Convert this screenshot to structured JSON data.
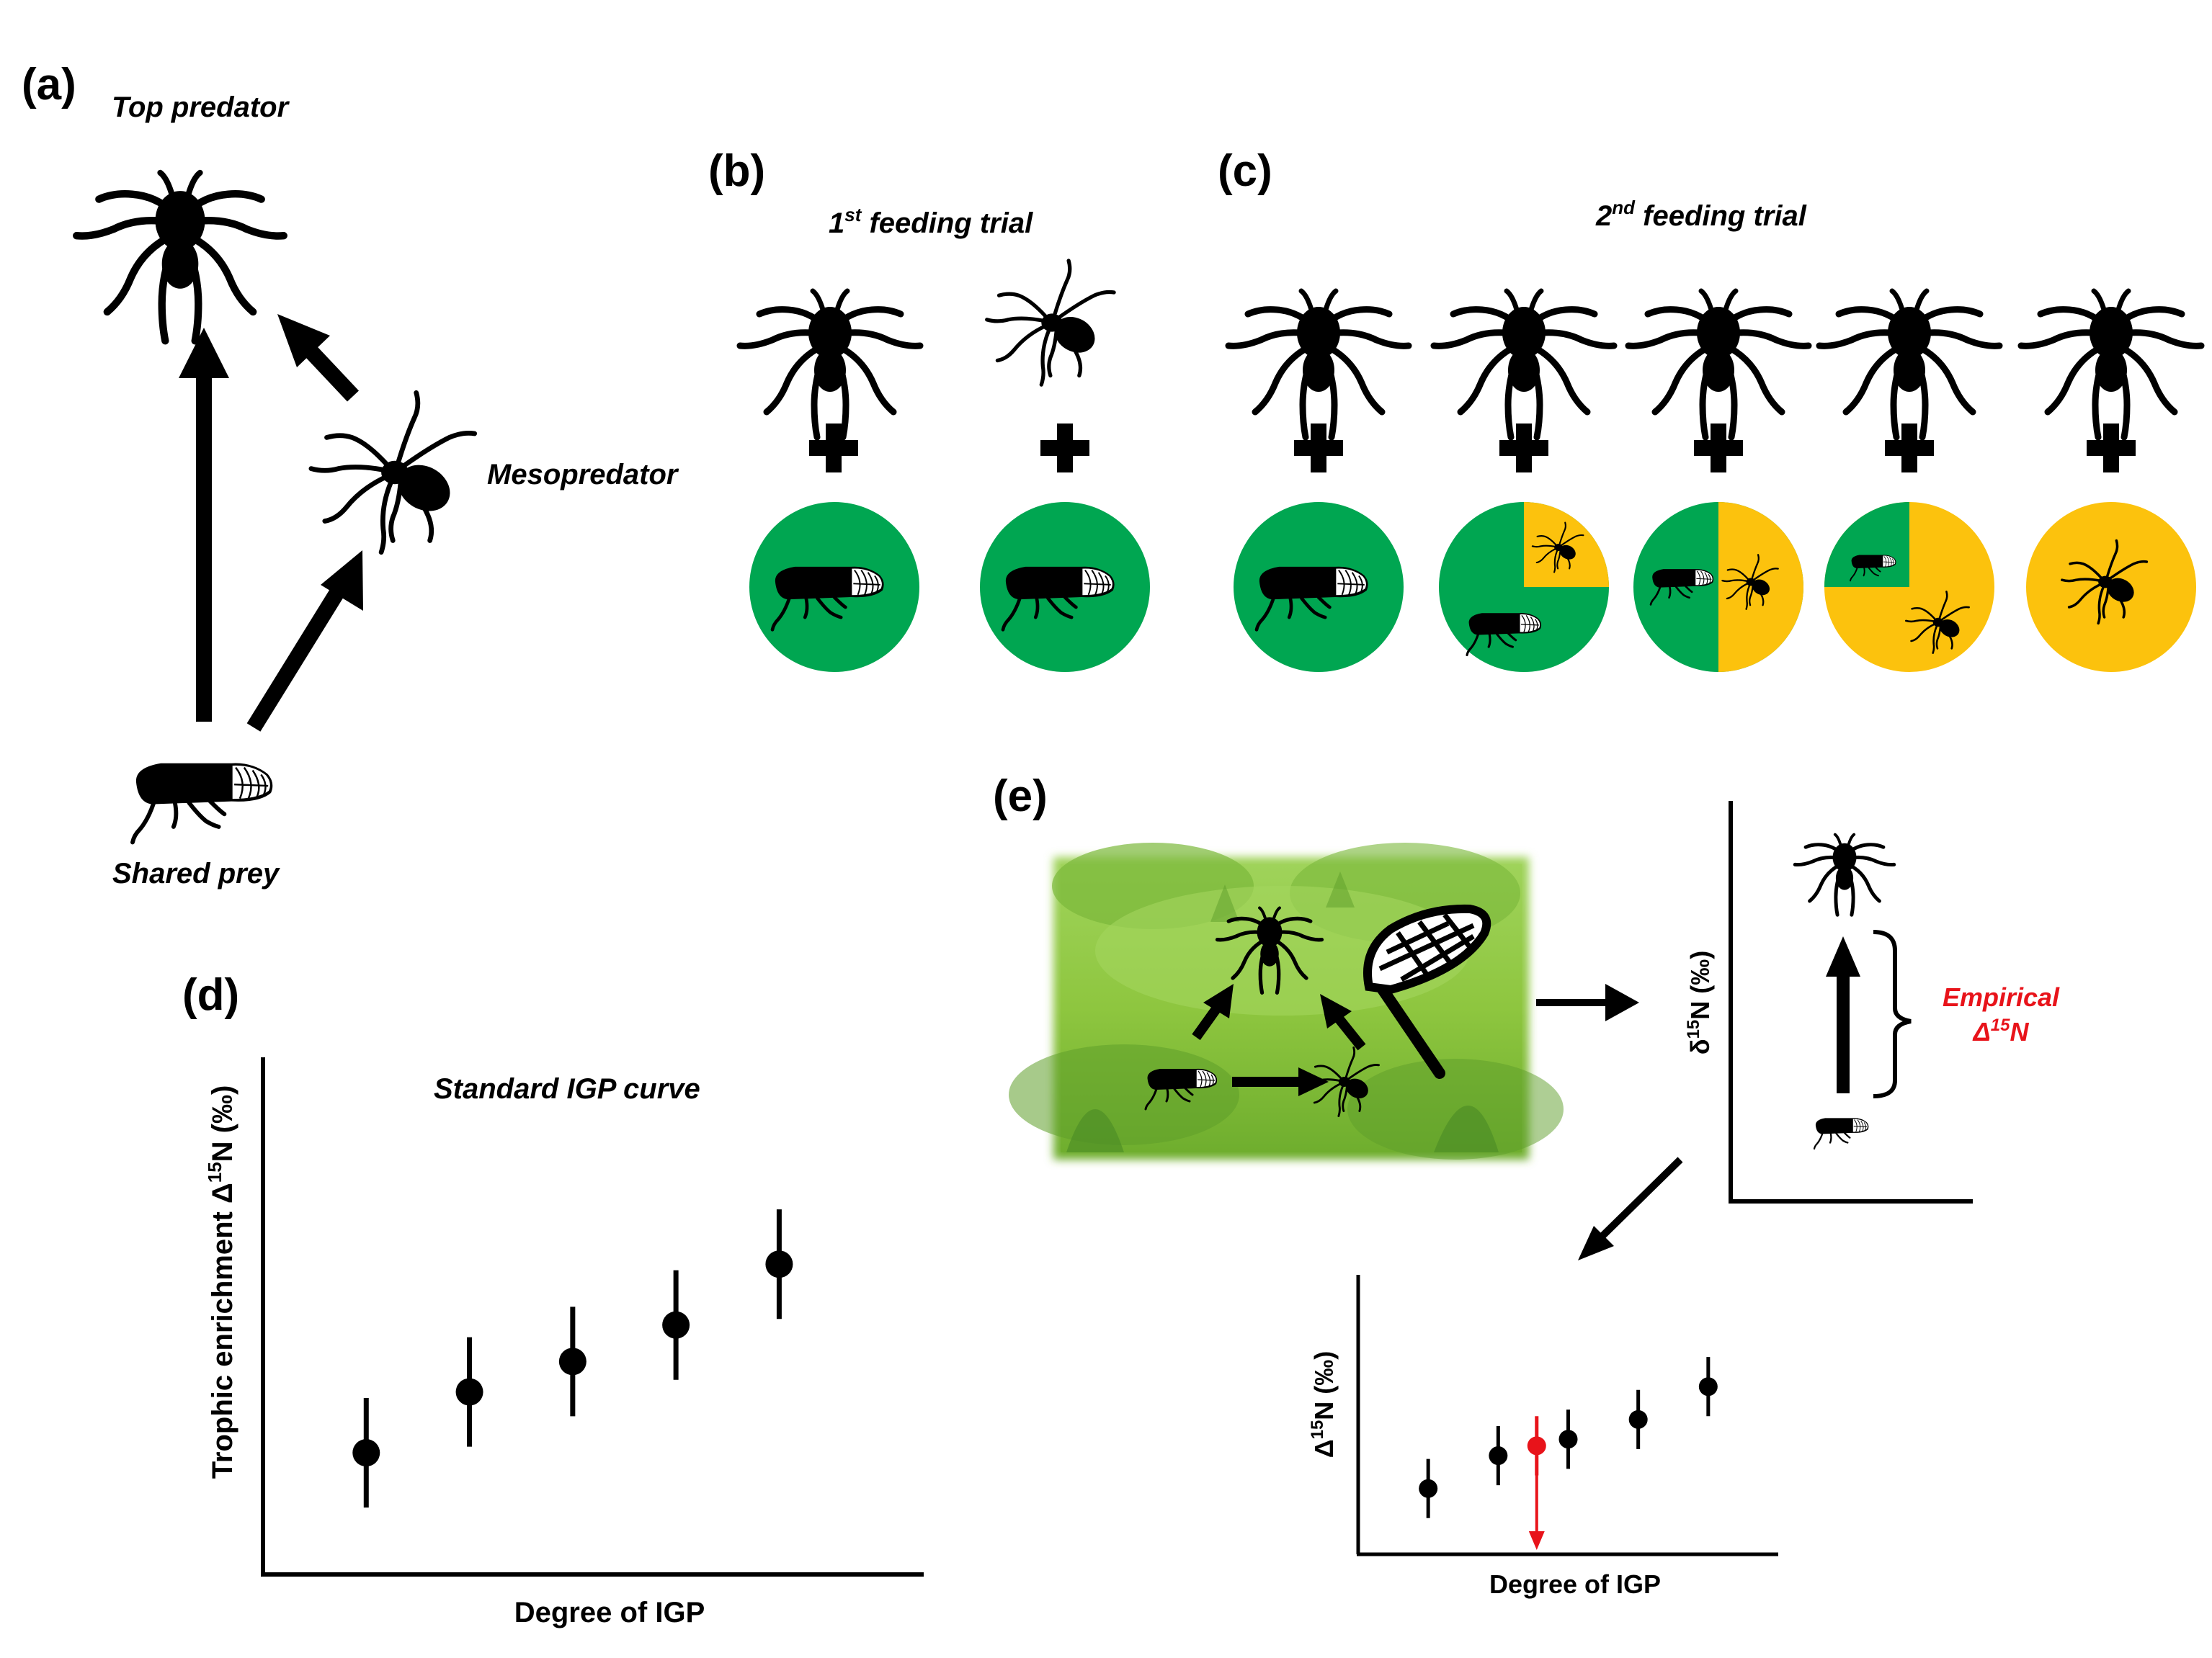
{
  "panels": {
    "a": {
      "label": "(a)",
      "top_predator": "Top predator",
      "mesopredator": "Mesopredator",
      "shared_prey": "Shared prey"
    },
    "b": {
      "label": "(b)",
      "title_prefix": "1",
      "title_sup": "st",
      "title_suffix": " feeding trial",
      "plus": "+"
    },
    "c": {
      "label": "(c)",
      "title_prefix": "2",
      "title_sup": "nd",
      "title_suffix": " feeding trial",
      "plus": "+",
      "diets": [
        {
          "mesopredator_fraction": 0
        },
        {
          "mesopredator_fraction": 0.25
        },
        {
          "mesopredator_fraction": 0.5
        },
        {
          "mesopredator_fraction": 0.75
        },
        {
          "mesopredator_fraction": 1
        }
      ]
    },
    "d": {
      "label": "(d)",
      "title": "Standard IGP curve",
      "xlabel": "Degree of IGP",
      "ylabel_main": "Trophic enrichment  Δ",
      "ylabel_sup": "15",
      "ylabel_unit": "N (‰)"
    },
    "e": {
      "label": "(e)",
      "delta_axis_label": "δ",
      "delta_axis_sup": "15",
      "delta_axis_unit": "N (‰)",
      "empirical_line1": "Empirical",
      "empirical_line2_prefix": "Δ",
      "empirical_line2_sup": "15",
      "empirical_line2_suffix": "N",
      "bottom_ylabel": "Δ",
      "bottom_ylabel_sup": "15",
      "bottom_ylabel_unit": "N (‰)",
      "bottom_xlabel": "Degree of IGP"
    }
  },
  "colors": {
    "prey_diet": "#00a651",
    "mesopredator_diet": "#fcc20d",
    "empirical": "#e8131a",
    "ink": "#000000",
    "habitat": "#8ec63f"
  },
  "chart_data": [
    {
      "type": "scatter",
      "title": "Standard IGP curve",
      "xlabel": "Degree of IGP",
      "ylabel": "Trophic enrichment Δ15N (‰)",
      "x": [
        1,
        2,
        3,
        4,
        5
      ],
      "y": [
        2.0,
        3.0,
        3.5,
        4.1,
        5.1
      ],
      "y_err": [
        0.9,
        0.9,
        0.9,
        0.9,
        0.9
      ],
      "xlim": [
        0,
        6.4
      ],
      "ylim": [
        0,
        8.5
      ],
      "grid": false
    },
    {
      "type": "scatter",
      "xlabel": "Degree of IGP",
      "ylabel": "Δ15N (‰)",
      "x": [
        1,
        2,
        3,
        4,
        5
      ],
      "y": [
        2.0,
        3.0,
        3.5,
        4.1,
        5.1
      ],
      "y_err": [
        0.9,
        0.9,
        0.9,
        0.9,
        0.9
      ],
      "empirical_point": {
        "x": 2.55,
        "y": 3.3,
        "y_err": 0.9
      },
      "xlim": [
        0,
        6.0
      ],
      "ylim": [
        0,
        8.5
      ],
      "grid": false
    }
  ]
}
